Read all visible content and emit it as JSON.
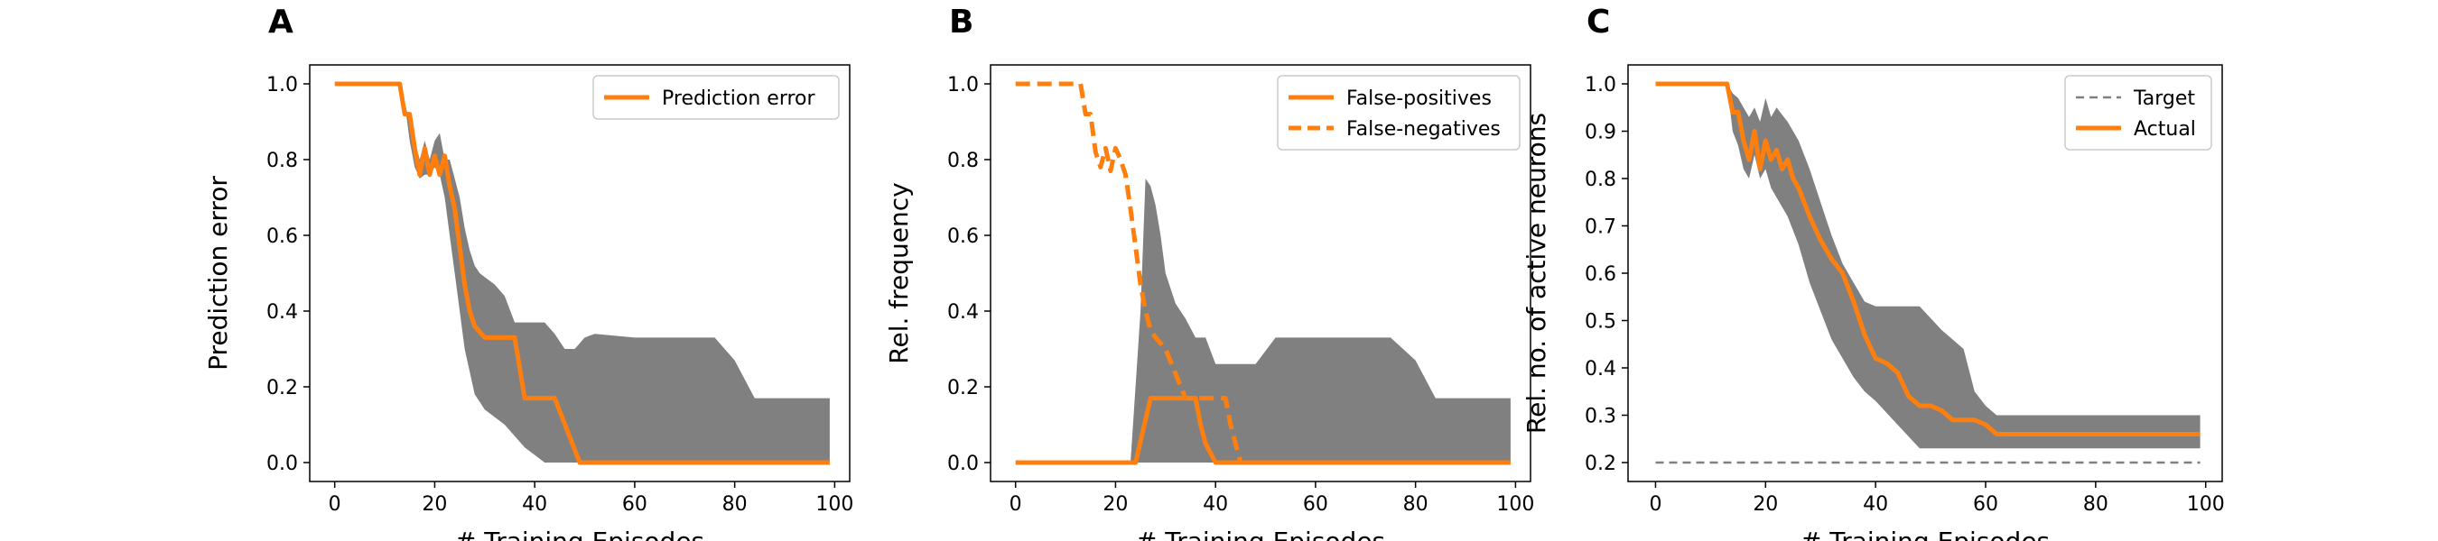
{
  "chart_data": [
    {
      "panel": "A",
      "type": "line",
      "xlabel": "# Training Episodes",
      "ylabel": "Prediction error",
      "xlim": [
        -5,
        103
      ],
      "ylim": [
        -0.05,
        1.05
      ],
      "xticks": [
        0,
        20,
        40,
        60,
        80,
        100
      ],
      "yticks": [
        0.0,
        0.2,
        0.4,
        0.6,
        0.8,
        1.0
      ],
      "ytick_decimals": 1,
      "legend_position": "top-right",
      "band": {
        "color": "#808080",
        "x": [
          0,
          13,
          14,
          15,
          16,
          17,
          18,
          19,
          20,
          21,
          22,
          23,
          24,
          25,
          26,
          27,
          28,
          29,
          30,
          32,
          34,
          36,
          38,
          40,
          42,
          44,
          46,
          48,
          50,
          52,
          60,
          70,
          76,
          80,
          84,
          90,
          99
        ],
        "upper": [
          1.0,
          1.0,
          0.95,
          0.9,
          0.85,
          0.8,
          0.85,
          0.8,
          0.85,
          0.87,
          0.8,
          0.8,
          0.75,
          0.7,
          0.62,
          0.56,
          0.52,
          0.5,
          0.49,
          0.47,
          0.44,
          0.37,
          0.37,
          0.37,
          0.37,
          0.34,
          0.3,
          0.3,
          0.33,
          0.34,
          0.33,
          0.33,
          0.33,
          0.27,
          0.17,
          0.17,
          0.17
        ],
        "lower": [
          1.0,
          1.0,
          0.95,
          0.85,
          0.78,
          0.75,
          0.76,
          0.76,
          0.78,
          0.76,
          0.7,
          0.6,
          0.5,
          0.4,
          0.3,
          0.24,
          0.18,
          0.16,
          0.14,
          0.12,
          0.1,
          0.07,
          0.04,
          0.02,
          0.0,
          0.0,
          0.0,
          0.0,
          0.0,
          0.0,
          0.0,
          0.0,
          0.0,
          0.0,
          0.0,
          0.0,
          0.0
        ]
      },
      "series": [
        {
          "name": "Prediction error",
          "color": "#ff7f0e",
          "style": "solid",
          "x": [
            0,
            13,
            14,
            15,
            16,
            17,
            18,
            19,
            20,
            21,
            22,
            23,
            24,
            25,
            26,
            27,
            28,
            30,
            34,
            36,
            38,
            42,
            44,
            49,
            60,
            80,
            99
          ],
          "y": [
            1.0,
            1.0,
            0.92,
            0.92,
            0.83,
            0.76,
            0.83,
            0.76,
            0.81,
            0.76,
            0.81,
            0.73,
            0.67,
            0.57,
            0.47,
            0.4,
            0.36,
            0.33,
            0.33,
            0.33,
            0.17,
            0.17,
            0.17,
            0.0,
            0.0,
            0.0,
            0.0
          ]
        }
      ]
    },
    {
      "panel": "B",
      "type": "line",
      "xlabel": "# Training Episodes",
      "ylabel": "Rel. frequency",
      "xlim": [
        -5,
        103
      ],
      "ylim": [
        -0.05,
        1.05
      ],
      "xticks": [
        0,
        20,
        40,
        60,
        80,
        100
      ],
      "yticks": [
        0.0,
        0.2,
        0.4,
        0.6,
        0.8,
        1.0
      ],
      "ytick_decimals": 1,
      "legend_position": "top-right",
      "band": {
        "color": "#808080",
        "x": [
          0,
          23,
          25,
          26,
          27,
          28,
          29,
          30,
          32,
          34,
          36,
          38,
          40,
          48,
          52,
          56,
          70,
          75,
          80,
          84,
          99
        ],
        "upper": [
          0.0,
          0.0,
          0.4,
          0.75,
          0.73,
          0.68,
          0.6,
          0.5,
          0.42,
          0.38,
          0.33,
          0.33,
          0.26,
          0.26,
          0.33,
          0.33,
          0.33,
          0.33,
          0.27,
          0.17,
          0.17
        ],
        "lower": [
          0.0,
          0.0,
          0.0,
          0.0,
          0.0,
          0.0,
          0.0,
          0.0,
          0.0,
          0.0,
          0.0,
          0.0,
          0.0,
          0.0,
          0.0,
          0.0,
          0.0,
          0.0,
          0.0,
          0.0,
          0.0
        ]
      },
      "series": [
        {
          "name": "False-positives",
          "color": "#ff7f0e",
          "style": "solid",
          "x": [
            0,
            24,
            27,
            30,
            34,
            36,
            37,
            38,
            40,
            60,
            99
          ],
          "y": [
            0.0,
            0.0,
            0.17,
            0.17,
            0.17,
            0.17,
            0.1,
            0.05,
            0.0,
            0.0,
            0.0
          ]
        },
        {
          "name": "False-negatives",
          "color": "#ff7f0e",
          "style": "dashed",
          "x": [
            0,
            13,
            14,
            15,
            16,
            17,
            18,
            19,
            20,
            21,
            22,
            23,
            24,
            25,
            26,
            27,
            28,
            30,
            34,
            36,
            38,
            42,
            43,
            45,
            60,
            99
          ],
          "y": [
            1.0,
            1.0,
            0.92,
            0.92,
            0.82,
            0.78,
            0.83,
            0.77,
            0.83,
            0.8,
            0.76,
            0.67,
            0.57,
            0.47,
            0.4,
            0.35,
            0.33,
            0.3,
            0.17,
            0.17,
            0.17,
            0.17,
            0.1,
            0.0,
            0.0,
            0.0
          ]
        }
      ]
    },
    {
      "panel": "C",
      "type": "line",
      "xlabel": "# Training Episodes",
      "ylabel": "Rel. no. of active neurons",
      "xlim": [
        -5,
        103
      ],
      "ylim": [
        0.16,
        1.04
      ],
      "xticks": [
        0,
        20,
        40,
        60,
        80,
        100
      ],
      "yticks": [
        0.2,
        0.3,
        0.4,
        0.5,
        0.6,
        0.7,
        0.8,
        0.9,
        1.0
      ],
      "ytick_decimals": 1,
      "legend_position": "top-right",
      "band": {
        "color": "#808080",
        "x": [
          0,
          13,
          14,
          15,
          16,
          17,
          18,
          19,
          20,
          21,
          22,
          24,
          26,
          28,
          30,
          32,
          34,
          36,
          38,
          40,
          44,
          48,
          52,
          56,
          58,
          60,
          62,
          64,
          70,
          80,
          90,
          99
        ],
        "upper": [
          1.0,
          1.0,
          0.98,
          0.97,
          0.95,
          0.93,
          0.95,
          0.92,
          0.97,
          0.93,
          0.95,
          0.92,
          0.88,
          0.82,
          0.75,
          0.68,
          0.62,
          0.58,
          0.54,
          0.53,
          0.53,
          0.53,
          0.48,
          0.44,
          0.35,
          0.32,
          0.3,
          0.3,
          0.3,
          0.3,
          0.3,
          0.3
        ],
        "lower": [
          1.0,
          1.0,
          0.9,
          0.87,
          0.82,
          0.8,
          0.85,
          0.8,
          0.82,
          0.78,
          0.76,
          0.72,
          0.66,
          0.58,
          0.52,
          0.46,
          0.42,
          0.38,
          0.35,
          0.33,
          0.28,
          0.23,
          0.23,
          0.23,
          0.23,
          0.23,
          0.23,
          0.23,
          0.23,
          0.23,
          0.23,
          0.23
        ]
      },
      "series": [
        {
          "name": "Target",
          "color": "#808080",
          "style": "dashed",
          "thin": true,
          "x": [
            0,
            99
          ],
          "y": [
            0.2,
            0.2
          ]
        },
        {
          "name": "Actual",
          "color": "#ff7f0e",
          "style": "solid",
          "x": [
            0,
            13,
            14,
            15,
            16,
            17,
            18,
            19,
            20,
            21,
            22,
            23,
            24,
            25,
            26,
            27,
            28,
            30,
            32,
            34,
            36,
            38,
            40,
            42,
            44,
            46,
            48,
            50,
            52,
            54,
            56,
            58,
            60,
            62,
            70,
            80,
            99
          ],
          "y": [
            1.0,
            1.0,
            0.94,
            0.94,
            0.88,
            0.84,
            0.9,
            0.82,
            0.88,
            0.84,
            0.86,
            0.82,
            0.84,
            0.8,
            0.78,
            0.75,
            0.72,
            0.67,
            0.63,
            0.6,
            0.54,
            0.47,
            0.42,
            0.41,
            0.39,
            0.34,
            0.32,
            0.32,
            0.31,
            0.29,
            0.29,
            0.29,
            0.28,
            0.26,
            0.26,
            0.26,
            0.26
          ]
        }
      ]
    }
  ]
}
